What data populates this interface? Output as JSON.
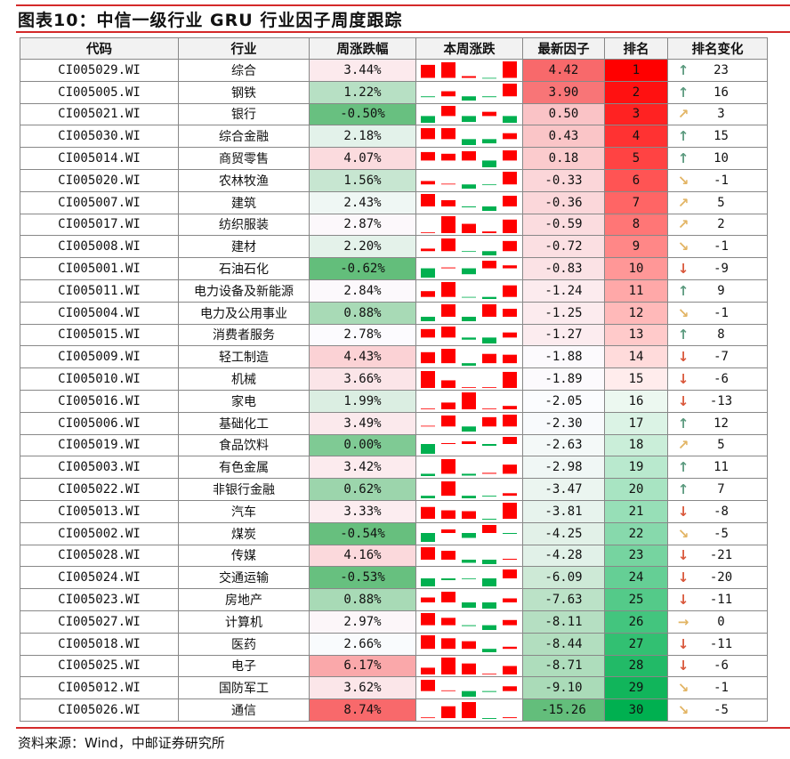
{
  "title": "图表10：中信一级行业 GRU 行业因子周度跟踪",
  "source": "资料来源：Wind，中邮证券研究所",
  "colors": {
    "up_red": "#ff0000",
    "down_green": "#00b050",
    "arrow_up": "#5b9a7e",
    "arrow_side": "#e2b463",
    "arrow_down": "#d9573a",
    "rule": "#d42a2a"
  },
  "chart_data": {
    "type": "table",
    "columns": [
      "代码",
      "行业",
      "周涨跌幅",
      "本周涨跌",
      "最新因子",
      "排名",
      "排名变化"
    ],
    "rows": [
      {
        "code": "CI005029.WI",
        "industry": "综合",
        "weekly": "3.44%",
        "daily": [
          1.5,
          1.8,
          0.2,
          -0.05,
          1.9
        ],
        "factor": "4.42",
        "rank": "1",
        "arrow": "up",
        "change": "23"
      },
      {
        "code": "CI005005.WI",
        "industry": "钢铁",
        "weekly": "1.22%",
        "daily": [
          -0.1,
          0.6,
          -0.5,
          -0.1,
          1.5
        ],
        "factor": "3.90",
        "rank": "2",
        "arrow": "up",
        "change": "16"
      },
      {
        "code": "CI005021.WI",
        "industry": "银行",
        "weekly": "-0.50%",
        "daily": [
          -0.8,
          1.2,
          -0.7,
          0.5,
          -0.8
        ],
        "factor": "0.50",
        "rank": "3",
        "arrow": "up-right",
        "change": "3"
      },
      {
        "code": "CI005030.WI",
        "industry": "综合金融",
        "weekly": "2.18%",
        "daily": [
          1.3,
          1.3,
          -0.7,
          -0.5,
          0.7
        ],
        "factor": "0.43",
        "rank": "4",
        "arrow": "up",
        "change": "15"
      },
      {
        "code": "CI005014.WI",
        "industry": "商贸零售",
        "weekly": "4.07%",
        "daily": [
          1.0,
          0.8,
          1.1,
          -0.8,
          1.2
        ],
        "factor": "0.18",
        "rank": "5",
        "arrow": "up",
        "change": "10"
      },
      {
        "code": "CI005020.WI",
        "industry": "农林牧渔",
        "weekly": "1.56%",
        "daily": [
          0.4,
          0.05,
          -0.5,
          -0.02,
          1.5
        ],
        "factor": "-0.33",
        "rank": "6",
        "arrow": "down-right",
        "change": "-1"
      },
      {
        "code": "CI005007.WI",
        "industry": "建筑",
        "weekly": "2.43%",
        "daily": [
          1.4,
          0.7,
          -0.1,
          -0.5,
          1.2
        ],
        "factor": "-0.36",
        "rank": "7",
        "arrow": "up-right",
        "change": "5"
      },
      {
        "code": "CI005017.WI",
        "industry": "纺织服装",
        "weekly": "2.87%",
        "daily": [
          0,
          2.0,
          1.1,
          0.2,
          1.6
        ],
        "factor": "-0.59",
        "rank": "8",
        "arrow": "up-right",
        "change": "2"
      },
      {
        "code": "CI005008.WI",
        "industry": "建材",
        "weekly": "2.20%",
        "daily": [
          0.3,
          1.5,
          -0.05,
          -0.5,
          1.2
        ],
        "factor": "-0.72",
        "rank": "9",
        "arrow": "down-right",
        "change": "-1"
      },
      {
        "code": "CI005001.WI",
        "industry": "石油石化",
        "weekly": "-0.62%",
        "daily": [
          -1.1,
          0.1,
          -0.7,
          0.9,
          0.35
        ],
        "factor": "-0.83",
        "rank": "10",
        "arrow": "down",
        "change": "-9"
      },
      {
        "code": "CI005011.WI",
        "industry": "电力设备及新能源",
        "weekly": "2.84%",
        "daily": [
          0.7,
          1.8,
          -0.05,
          -0.25,
          1.4
        ],
        "factor": "-1.24",
        "rank": "11",
        "arrow": "up",
        "change": "9"
      },
      {
        "code": "CI005004.WI",
        "industry": "电力及公用事业",
        "weekly": "0.88%",
        "daily": [
          -0.5,
          1.4,
          -0.5,
          1.4,
          0.9
        ],
        "factor": "-1.25",
        "rank": "12",
        "arrow": "down-right",
        "change": "-1"
      },
      {
        "code": "CI005015.WI",
        "industry": "消费者服务",
        "weekly": "2.78%",
        "daily": [
          1.0,
          1.3,
          -0.25,
          -0.7,
          0.6
        ],
        "factor": "-1.27",
        "rank": "13",
        "arrow": "up",
        "change": "8"
      },
      {
        "code": "CI005009.WI",
        "industry": "轻工制造",
        "weekly": "4.43%",
        "daily": [
          1.3,
          1.7,
          -0.3,
          1.1,
          1.0
        ],
        "factor": "-1.88",
        "rank": "14",
        "arrow": "down",
        "change": "-7"
      },
      {
        "code": "CI005010.WI",
        "industry": "机械",
        "weekly": "3.66%",
        "daily": [
          2.0,
          0.9,
          0,
          0.05,
          1.9
        ],
        "factor": "-1.89",
        "rank": "15",
        "arrow": "down",
        "change": "-6"
      },
      {
        "code": "CI005016.WI",
        "industry": "家电",
        "weekly": "1.99%",
        "daily": [
          0,
          0.8,
          2.0,
          0,
          0.4
        ],
        "factor": "-2.05",
        "rank": "16",
        "arrow": "down",
        "change": "-13"
      },
      {
        "code": "CI005006.WI",
        "industry": "基础化工",
        "weekly": "3.49%",
        "daily": [
          0.05,
          1.3,
          -0.6,
          1.1,
          1.4
        ],
        "factor": "-2.30",
        "rank": "17",
        "arrow": "up",
        "change": "12"
      },
      {
        "code": "CI005019.WI",
        "industry": "食品饮料",
        "weekly": "0.00%",
        "daily": [
          -1.1,
          0.1,
          0.3,
          -0.2,
          0.8
        ],
        "factor": "-2.63",
        "rank": "18",
        "arrow": "up-right",
        "change": "5"
      },
      {
        "code": "CI005003.WI",
        "industry": "有色金属",
        "weekly": "3.42%",
        "daily": [
          -0.25,
          1.6,
          -0.2,
          0.1,
          1.0
        ],
        "factor": "-2.98",
        "rank": "19",
        "arrow": "up",
        "change": "11"
      },
      {
        "code": "CI005022.WI",
        "industry": "非银行金融",
        "weekly": "0.62%",
        "daily": [
          -0.3,
          1.7,
          -0.3,
          -0.1,
          0.3
        ],
        "factor": "-3.47",
        "rank": "20",
        "arrow": "up",
        "change": "7"
      },
      {
        "code": "CI005013.WI",
        "industry": "汽车",
        "weekly": "3.33%",
        "daily": [
          1.4,
          1.0,
          0.9,
          -0.1,
          1.9
        ],
        "factor": "-3.81",
        "rank": "21",
        "arrow": "down",
        "change": "-8"
      },
      {
        "code": "CI005002.WI",
        "industry": "煤炭",
        "weekly": "-0.54%",
        "daily": [
          -1.0,
          0.4,
          -0.55,
          0.9,
          -0.1
        ],
        "factor": "-4.25",
        "rank": "22",
        "arrow": "down-right",
        "change": "-5"
      },
      {
        "code": "CI005028.WI",
        "industry": "传媒",
        "weekly": "4.16%",
        "daily": [
          1.4,
          1.0,
          -0.35,
          -0.5,
          0.1
        ],
        "factor": "-4.28",
        "rank": "23",
        "arrow": "down",
        "change": "-21"
      },
      {
        "code": "CI005024.WI",
        "industry": "交通运输",
        "weekly": "-0.53%",
        "daily": [
          -0.9,
          -0.2,
          -0.05,
          -0.9,
          1.0
        ],
        "factor": "-6.09",
        "rank": "24",
        "arrow": "down",
        "change": "-20"
      },
      {
        "code": "CI005023.WI",
        "industry": "房地产",
        "weekly": "0.88%",
        "daily": [
          0.55,
          1.2,
          -0.6,
          -0.7,
          0.45
        ],
        "factor": "-7.63",
        "rank": "25",
        "arrow": "down",
        "change": "-11"
      },
      {
        "code": "CI005027.WI",
        "industry": "计算机",
        "weekly": "2.97%",
        "daily": [
          1.4,
          0.85,
          -0.1,
          -0.55,
          0.6
        ],
        "factor": "-8.11",
        "rank": "26",
        "arrow": "right",
        "change": "0"
      },
      {
        "code": "CI005018.WI",
        "industry": "医药",
        "weekly": "2.66%",
        "daily": [
          1.6,
          1.25,
          0.9,
          -0.4,
          0.25
        ],
        "factor": "-8.44",
        "rank": "27",
        "arrow": "down",
        "change": "-11"
      },
      {
        "code": "CI005025.WI",
        "industry": "电子",
        "weekly": "6.17%",
        "daily": [
          0.8,
          2.0,
          1.3,
          0,
          1.0
        ],
        "factor": "-8.71",
        "rank": "28",
        "arrow": "down",
        "change": "-6"
      },
      {
        "code": "CI005012.WI",
        "industry": "国防军工",
        "weekly": "3.62%",
        "daily": [
          1.3,
          0.05,
          -0.65,
          -0.1,
          0.55
        ],
        "factor": "-9.10",
        "rank": "29",
        "arrow": "down-right",
        "change": "-1"
      },
      {
        "code": "CI005026.WI",
        "industry": "通信",
        "weekly": "8.74%",
        "daily": [
          0.05,
          1.4,
          1.9,
          -0.1,
          0.1
        ],
        "factor": "-15.26",
        "rank": "30",
        "arrow": "down-right",
        "change": "-5"
      }
    ]
  }
}
